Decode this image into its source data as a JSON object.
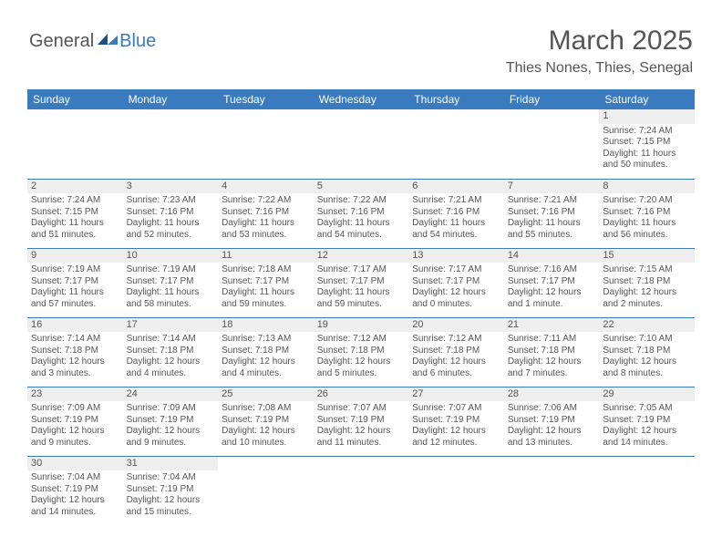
{
  "logo": {
    "general": "General",
    "blue": "Blue"
  },
  "title": "March 2025",
  "location": "Thies Nones, Thies, Senegal",
  "colors": {
    "accent": "#3a7bbf",
    "text": "#555555",
    "dayheader_bg": "#eeeeee",
    "bg": "#ffffff"
  },
  "dayHeaders": [
    "Sunday",
    "Monday",
    "Tuesday",
    "Wednesday",
    "Thursday",
    "Friday",
    "Saturday"
  ],
  "weeks": [
    [
      null,
      null,
      null,
      null,
      null,
      null,
      {
        "d": "1",
        "sr": "Sunrise: 7:24 AM",
        "ss": "Sunset: 7:15 PM",
        "dl": "Daylight: 11 hours and 50 minutes."
      }
    ],
    [
      {
        "d": "2",
        "sr": "Sunrise: 7:24 AM",
        "ss": "Sunset: 7:15 PM",
        "dl": "Daylight: 11 hours and 51 minutes."
      },
      {
        "d": "3",
        "sr": "Sunrise: 7:23 AM",
        "ss": "Sunset: 7:16 PM",
        "dl": "Daylight: 11 hours and 52 minutes."
      },
      {
        "d": "4",
        "sr": "Sunrise: 7:22 AM",
        "ss": "Sunset: 7:16 PM",
        "dl": "Daylight: 11 hours and 53 minutes."
      },
      {
        "d": "5",
        "sr": "Sunrise: 7:22 AM",
        "ss": "Sunset: 7:16 PM",
        "dl": "Daylight: 11 hours and 54 minutes."
      },
      {
        "d": "6",
        "sr": "Sunrise: 7:21 AM",
        "ss": "Sunset: 7:16 PM",
        "dl": "Daylight: 11 hours and 54 minutes."
      },
      {
        "d": "7",
        "sr": "Sunrise: 7:21 AM",
        "ss": "Sunset: 7:16 PM",
        "dl": "Daylight: 11 hours and 55 minutes."
      },
      {
        "d": "8",
        "sr": "Sunrise: 7:20 AM",
        "ss": "Sunset: 7:16 PM",
        "dl": "Daylight: 11 hours and 56 minutes."
      }
    ],
    [
      {
        "d": "9",
        "sr": "Sunrise: 7:19 AM",
        "ss": "Sunset: 7:17 PM",
        "dl": "Daylight: 11 hours and 57 minutes."
      },
      {
        "d": "10",
        "sr": "Sunrise: 7:19 AM",
        "ss": "Sunset: 7:17 PM",
        "dl": "Daylight: 11 hours and 58 minutes."
      },
      {
        "d": "11",
        "sr": "Sunrise: 7:18 AM",
        "ss": "Sunset: 7:17 PM",
        "dl": "Daylight: 11 hours and 59 minutes."
      },
      {
        "d": "12",
        "sr": "Sunrise: 7:17 AM",
        "ss": "Sunset: 7:17 PM",
        "dl": "Daylight: 11 hours and 59 minutes."
      },
      {
        "d": "13",
        "sr": "Sunrise: 7:17 AM",
        "ss": "Sunset: 7:17 PM",
        "dl": "Daylight: 12 hours and 0 minutes."
      },
      {
        "d": "14",
        "sr": "Sunrise: 7:16 AM",
        "ss": "Sunset: 7:17 PM",
        "dl": "Daylight: 12 hours and 1 minute."
      },
      {
        "d": "15",
        "sr": "Sunrise: 7:15 AM",
        "ss": "Sunset: 7:18 PM",
        "dl": "Daylight: 12 hours and 2 minutes."
      }
    ],
    [
      {
        "d": "16",
        "sr": "Sunrise: 7:14 AM",
        "ss": "Sunset: 7:18 PM",
        "dl": "Daylight: 12 hours and 3 minutes."
      },
      {
        "d": "17",
        "sr": "Sunrise: 7:14 AM",
        "ss": "Sunset: 7:18 PM",
        "dl": "Daylight: 12 hours and 4 minutes."
      },
      {
        "d": "18",
        "sr": "Sunrise: 7:13 AM",
        "ss": "Sunset: 7:18 PM",
        "dl": "Daylight: 12 hours and 4 minutes."
      },
      {
        "d": "19",
        "sr": "Sunrise: 7:12 AM",
        "ss": "Sunset: 7:18 PM",
        "dl": "Daylight: 12 hours and 5 minutes."
      },
      {
        "d": "20",
        "sr": "Sunrise: 7:12 AM",
        "ss": "Sunset: 7:18 PM",
        "dl": "Daylight: 12 hours and 6 minutes."
      },
      {
        "d": "21",
        "sr": "Sunrise: 7:11 AM",
        "ss": "Sunset: 7:18 PM",
        "dl": "Daylight: 12 hours and 7 minutes."
      },
      {
        "d": "22",
        "sr": "Sunrise: 7:10 AM",
        "ss": "Sunset: 7:18 PM",
        "dl": "Daylight: 12 hours and 8 minutes."
      }
    ],
    [
      {
        "d": "23",
        "sr": "Sunrise: 7:09 AM",
        "ss": "Sunset: 7:19 PM",
        "dl": "Daylight: 12 hours and 9 minutes."
      },
      {
        "d": "24",
        "sr": "Sunrise: 7:09 AM",
        "ss": "Sunset: 7:19 PM",
        "dl": "Daylight: 12 hours and 9 minutes."
      },
      {
        "d": "25",
        "sr": "Sunrise: 7:08 AM",
        "ss": "Sunset: 7:19 PM",
        "dl": "Daylight: 12 hours and 10 minutes."
      },
      {
        "d": "26",
        "sr": "Sunrise: 7:07 AM",
        "ss": "Sunset: 7:19 PM",
        "dl": "Daylight: 12 hours and 11 minutes."
      },
      {
        "d": "27",
        "sr": "Sunrise: 7:07 AM",
        "ss": "Sunset: 7:19 PM",
        "dl": "Daylight: 12 hours and 12 minutes."
      },
      {
        "d": "28",
        "sr": "Sunrise: 7:06 AM",
        "ss": "Sunset: 7:19 PM",
        "dl": "Daylight: 12 hours and 13 minutes."
      },
      {
        "d": "29",
        "sr": "Sunrise: 7:05 AM",
        "ss": "Sunset: 7:19 PM",
        "dl": "Daylight: 12 hours and 14 minutes."
      }
    ],
    [
      {
        "d": "30",
        "sr": "Sunrise: 7:04 AM",
        "ss": "Sunset: 7:19 PM",
        "dl": "Daylight: 12 hours and 14 minutes."
      },
      {
        "d": "31",
        "sr": "Sunrise: 7:04 AM",
        "ss": "Sunset: 7:19 PM",
        "dl": "Daylight: 12 hours and 15 minutes."
      },
      null,
      null,
      null,
      null,
      null
    ]
  ]
}
